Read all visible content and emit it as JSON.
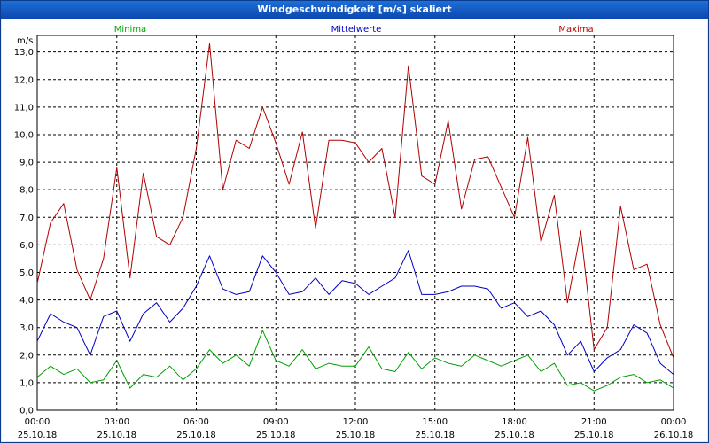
{
  "window": {
    "title": "Windgeschwindigkeit [m/s] skaliert"
  },
  "chart_data": {
    "type": "line",
    "title": "Windgeschwindigkeit [m/s] skaliert",
    "ylabel": "m/s",
    "xlabel": "",
    "ylim": [
      0,
      13.6
    ],
    "xlim": [
      0,
      24
    ],
    "y_ticks": [
      "0,0",
      "1,0",
      "2,0",
      "3,0",
      "4,0",
      "5,0",
      "6,0",
      "7,0",
      "8,0",
      "9,0",
      "10,0",
      "11,0",
      "12,0",
      "13,0"
    ],
    "x_ticks": [
      {
        "time": "00:00",
        "date": "25.10.18"
      },
      {
        "time": "03:00",
        "date": "25.10.18"
      },
      {
        "time": "06:00",
        "date": "25.10.18"
      },
      {
        "time": "09:00",
        "date": "25.10.18"
      },
      {
        "time": "12:00",
        "date": "25.10.18"
      },
      {
        "time": "15:00",
        "date": "25.10.18"
      },
      {
        "time": "18:00",
        "date": "25.10.18"
      },
      {
        "time": "21:00",
        "date": "25.10.18"
      },
      {
        "time": "00:00",
        "date": "26.10.18"
      }
    ],
    "grid": true,
    "legend": [
      "Minima",
      "Mittelwerte",
      "Maxima"
    ],
    "x": [
      0,
      0.5,
      1,
      1.5,
      2,
      2.5,
      3,
      3.5,
      4,
      4.5,
      5,
      5.5,
      6,
      6.5,
      7,
      7.5,
      8,
      8.5,
      9,
      9.5,
      10,
      10.5,
      11,
      11.5,
      12,
      12.5,
      13,
      13.5,
      14,
      14.5,
      15,
      15.5,
      16,
      16.5,
      17,
      17.5,
      18,
      18.5,
      19,
      19.5,
      20,
      20.5,
      21,
      21.5,
      22,
      22.5,
      23,
      23.5,
      24
    ],
    "series": [
      {
        "name": "Minima",
        "color": "#00a000",
        "values": [
          1.2,
          1.6,
          1.3,
          1.5,
          1.0,
          1.1,
          1.8,
          0.8,
          1.3,
          1.2,
          1.6,
          1.1,
          1.5,
          2.2,
          1.7,
          2.0,
          1.6,
          2.9,
          1.8,
          1.6,
          2.2,
          1.5,
          1.7,
          1.6,
          1.6,
          2.3,
          1.5,
          1.4,
          2.1,
          1.5,
          1.9,
          1.7,
          1.6,
          2.0,
          1.8,
          1.6,
          1.8,
          2.0,
          1.4,
          1.7,
          0.9,
          1.0,
          0.7,
          0.9,
          1.2,
          1.3,
          1.0,
          1.1,
          0.8
        ]
      },
      {
        "name": "Mittelwerte",
        "color": "#0000c0",
        "values": [
          2.5,
          3.5,
          3.2,
          3.0,
          2.0,
          3.4,
          3.6,
          2.5,
          3.5,
          3.9,
          3.2,
          3.7,
          4.5,
          5.6,
          4.4,
          4.2,
          4.3,
          5.6,
          5.0,
          4.2,
          4.3,
          4.8,
          4.2,
          4.7,
          4.6,
          4.2,
          4.5,
          4.8,
          5.8,
          4.2,
          4.2,
          4.3,
          4.5,
          4.5,
          4.4,
          3.7,
          3.9,
          3.4,
          3.6,
          3.1,
          2.0,
          2.5,
          1.4,
          1.9,
          2.2,
          3.1,
          2.8,
          1.7,
          1.3
        ]
      },
      {
        "name": "Maxima",
        "color": "#b00000",
        "values": [
          4.6,
          6.8,
          7.5,
          5.1,
          4.0,
          5.5,
          8.8,
          4.8,
          8.6,
          6.3,
          6.0,
          7.0,
          9.5,
          13.3,
          8.0,
          9.8,
          9.5,
          11.0,
          9.7,
          8.2,
          10.1,
          6.6,
          9.8,
          9.8,
          9.7,
          9.0,
          9.5,
          7.0,
          12.5,
          8.5,
          8.2,
          10.5,
          7.3,
          9.1,
          9.2,
          8.1,
          7.0,
          9.9,
          6.1,
          7.8,
          3.9,
          6.5,
          2.2,
          3.0,
          7.4,
          5.1,
          5.3,
          3.1,
          1.9
        ]
      }
    ]
  }
}
